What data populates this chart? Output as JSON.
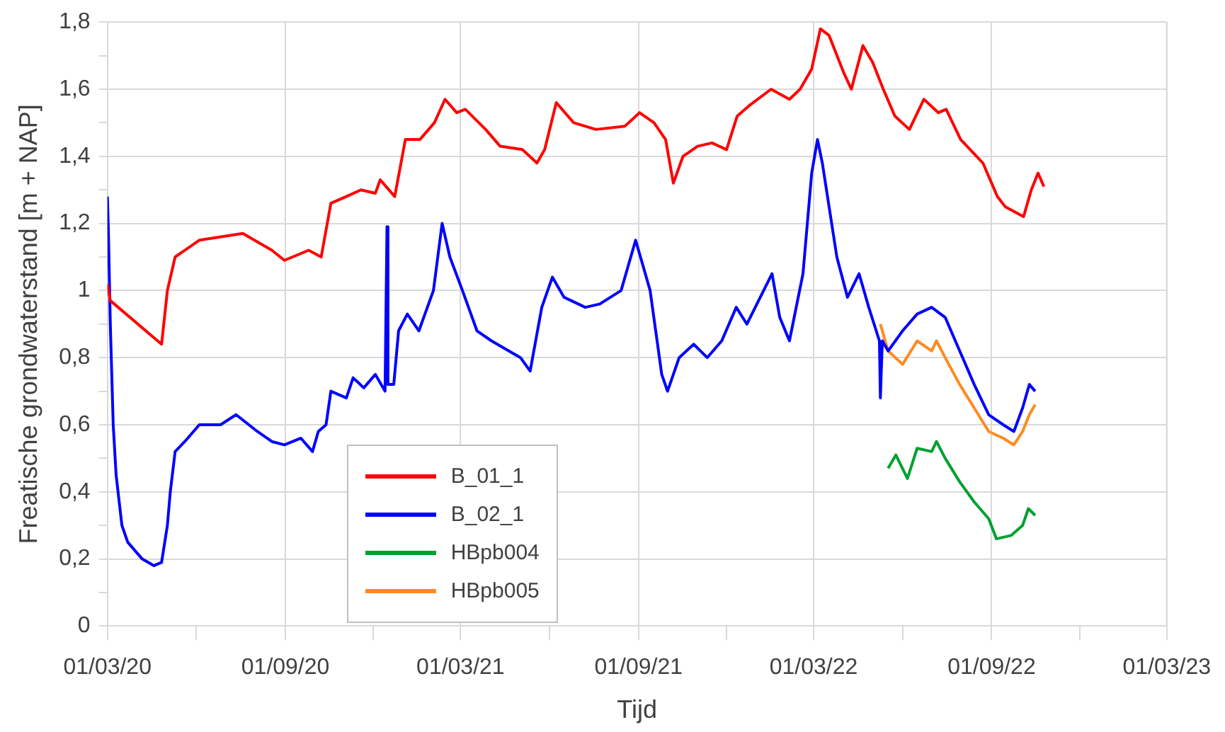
{
  "chart_data": {
    "type": "line",
    "xlabel": "Tijd",
    "ylabel": "Freatische grondwaterstand [m + NAP]",
    "xlim": [
      "2020-03-01",
      "2023-03-01"
    ],
    "xticks": [
      {
        "value": "2020-03-01",
        "label": "01/03/20"
      },
      {
        "value": "2020-06-01",
        "label": null
      },
      {
        "value": "2020-09-01",
        "label": "01/09/20"
      },
      {
        "value": "2020-12-01",
        "label": null
      },
      {
        "value": "2021-03-01",
        "label": "01/03/21"
      },
      {
        "value": "2021-06-01",
        "label": null
      },
      {
        "value": "2021-09-01",
        "label": "01/09/21"
      },
      {
        "value": "2021-12-01",
        "label": null
      },
      {
        "value": "2022-03-01",
        "label": "01/03/22"
      },
      {
        "value": "2022-06-01",
        "label": null
      },
      {
        "value": "2022-09-01",
        "label": "01/09/22"
      },
      {
        "value": "2022-12-01",
        "label": null
      },
      {
        "value": "2023-03-01",
        "label": "01/03/23"
      }
    ],
    "ylim": [
      0,
      1.8
    ],
    "yticks": [
      0,
      {
        "value": 0.1,
        "label": null
      },
      {
        "value": 0.2,
        "label": "0,2"
      },
      {
        "value": 0.3,
        "label": null
      },
      {
        "value": 0.4,
        "label": "0,4"
      },
      {
        "value": 0.5,
        "label": null
      },
      {
        "value": 0.6,
        "label": "0,6"
      },
      {
        "value": 0.7,
        "label": null
      },
      {
        "value": 0.8,
        "label": "0,8"
      },
      {
        "value": 0.9,
        "label": null
      },
      1,
      {
        "value": 1.1,
        "label": null
      },
      {
        "value": 1.2,
        "label": "1,2"
      },
      {
        "value": 1.3,
        "label": null
      },
      {
        "value": 1.4,
        "label": "1,4"
      },
      {
        "value": 1.5,
        "label": null
      },
      {
        "value": 1.6,
        "label": "1,6"
      },
      {
        "value": 1.7,
        "label": null
      },
      {
        "value": 1.8,
        "label": "1,8"
      }
    ],
    "grid": true,
    "legend": "bottom",
    "marker": "none",
    "line_style": "solid",
    "series": [
      {
        "name": "B_01_1",
        "color": "#ff0000",
        "x": [
          "2020-03-01",
          "2020-03-04",
          "2020-04-26",
          "2020-05-02",
          "2020-05-10",
          "2020-06-04",
          "2020-07-19",
          "2020-08-18",
          "2020-08-31",
          "2020-09-25",
          "2020-10-08",
          "2020-10-18",
          "2020-11-03",
          "2020-11-18",
          "2020-12-03",
          "2020-12-08",
          "2020-12-23",
          "2021-01-03",
          "2021-01-18",
          "2021-02-02",
          "2021-02-13",
          "2021-02-25",
          "2021-03-06",
          "2021-03-27",
          "2021-04-11",
          "2021-05-04",
          "2021-05-19",
          "2021-05-27",
          "2021-06-08",
          "2021-06-26",
          "2021-07-19",
          "2021-08-18",
          "2021-09-02",
          "2021-09-17",
          "2021-09-29",
          "2021-10-07",
          "2021-10-17",
          "2021-11-01",
          "2021-11-16",
          "2021-12-01",
          "2021-12-12",
          "2021-12-24",
          "2022-01-16",
          "2022-02-04",
          "2022-02-15",
          "2022-02-27",
          "2022-03-08",
          "2022-03-17",
          "2022-04-01",
          "2022-04-09",
          "2022-04-21",
          "2022-05-01",
          "2022-05-12",
          "2022-05-24",
          "2022-06-08",
          "2022-06-23",
          "2022-07-08",
          "2022-07-16",
          "2022-07-31",
          "2022-08-23",
          "2022-09-07",
          "2022-09-15",
          "2022-10-04",
          "2022-10-12",
          "2022-10-19",
          "2022-10-25"
        ],
        "values": [
          1.02,
          0.97,
          0.84,
          1.0,
          1.1,
          1.15,
          1.17,
          1.12,
          1.09,
          1.12,
          1.1,
          1.26,
          1.28,
          1.3,
          1.29,
          1.33,
          1.28,
          1.45,
          1.45,
          1.5,
          1.57,
          1.53,
          1.54,
          1.48,
          1.43,
          1.42,
          1.38,
          1.42,
          1.56,
          1.5,
          1.48,
          1.49,
          1.53,
          1.5,
          1.45,
          1.32,
          1.4,
          1.43,
          1.44,
          1.42,
          1.52,
          1.55,
          1.6,
          1.57,
          1.6,
          1.66,
          1.78,
          1.76,
          1.65,
          1.6,
          1.73,
          1.68,
          1.6,
          1.52,
          1.48,
          1.57,
          1.53,
          1.54,
          1.45,
          1.38,
          1.28,
          1.25,
          1.22,
          1.3,
          1.35,
          1.31
        ]
      },
      {
        "name": "B_02_1",
        "color": "#0000ff",
        "x": [
          "2020-03-01",
          "2020-03-02",
          "2020-03-04",
          "2020-03-07",
          "2020-03-10",
          "2020-03-16",
          "2020-03-22",
          "2020-04-06",
          "2020-04-18",
          "2020-04-26",
          "2020-05-02",
          "2020-05-05",
          "2020-05-10",
          "2020-05-20",
          "2020-06-04",
          "2020-06-26",
          "2020-07-12",
          "2020-08-03",
          "2020-08-18",
          "2020-08-31",
          "2020-09-17",
          "2020-09-29",
          "2020-10-05",
          "2020-10-13",
          "2020-10-18",
          "2020-11-03",
          "2020-11-10",
          "2020-11-21",
          "2020-12-03",
          "2020-12-13",
          "2020-12-15",
          "2020-12-16",
          "2020-12-22",
          "2020-12-27",
          "2021-01-05",
          "2021-01-17",
          "2021-02-01",
          "2021-02-10",
          "2021-02-18",
          "2021-03-03",
          "2021-03-18",
          "2021-04-02",
          "2021-05-02",
          "2021-05-12",
          "2021-05-24",
          "2021-06-04",
          "2021-06-16",
          "2021-07-08",
          "2021-07-23",
          "2021-08-14",
          "2021-08-29",
          "2021-09-13",
          "2021-09-25",
          "2021-10-01",
          "2021-10-13",
          "2021-10-28",
          "2021-11-11",
          "2021-11-26",
          "2021-12-11",
          "2021-12-22",
          "2022-01-17",
          "2022-01-25",
          "2022-02-04",
          "2022-02-18",
          "2022-02-27",
          "2022-03-05",
          "2022-03-10",
          "2022-03-25",
          "2022-04-05",
          "2022-04-17",
          "2022-04-27",
          "2022-05-08",
          "2022-05-09",
          "2022-05-11",
          "2022-05-17",
          "2022-06-01",
          "2022-06-16",
          "2022-07-01",
          "2022-07-15",
          "2022-07-30",
          "2022-08-14",
          "2022-08-29",
          "2022-09-13",
          "2022-09-24",
          "2022-10-03",
          "2022-10-10",
          "2022-10-16"
        ],
        "values": [
          1.28,
          1.18,
          0.9,
          0.6,
          0.45,
          0.3,
          0.25,
          0.2,
          0.18,
          0.19,
          0.3,
          0.4,
          0.52,
          0.55,
          0.6,
          0.6,
          0.63,
          0.58,
          0.55,
          0.54,
          0.56,
          0.52,
          0.58,
          0.6,
          0.7,
          0.68,
          0.74,
          0.71,
          0.75,
          0.7,
          1.19,
          0.72,
          0.72,
          0.88,
          0.93,
          0.88,
          1.0,
          1.2,
          1.1,
          1.0,
          0.88,
          0.85,
          0.8,
          0.76,
          0.95,
          1.04,
          0.98,
          0.95,
          0.96,
          1.0,
          1.15,
          1.0,
          0.75,
          0.7,
          0.8,
          0.84,
          0.8,
          0.85,
          0.95,
          0.9,
          1.05,
          0.92,
          0.85,
          1.05,
          1.35,
          1.45,
          1.38,
          1.1,
          0.98,
          1.05,
          0.95,
          0.85,
          0.68,
          0.85,
          0.82,
          0.88,
          0.93,
          0.95,
          0.92,
          0.82,
          0.72,
          0.63,
          0.6,
          0.58,
          0.65,
          0.72,
          0.7
        ]
      },
      {
        "name": "HBpb004",
        "color": "#00a030",
        "x": [
          "2022-05-17",
          "2022-05-25",
          "2022-06-06",
          "2022-06-16",
          "2022-07-01",
          "2022-07-06",
          "2022-07-15",
          "2022-07-30",
          "2022-08-14",
          "2022-08-29",
          "2022-09-06",
          "2022-09-21",
          "2022-10-03",
          "2022-10-09",
          "2022-10-16"
        ],
        "values": [
          0.47,
          0.51,
          0.44,
          0.53,
          0.52,
          0.55,
          0.5,
          0.43,
          0.37,
          0.32,
          0.26,
          0.27,
          0.3,
          0.35,
          0.33
        ]
      },
      {
        "name": "HBpb005",
        "color": "#ff8a20",
        "x": [
          "2022-05-09",
          "2022-05-17",
          "2022-06-01",
          "2022-06-16",
          "2022-07-01",
          "2022-07-06",
          "2022-07-15",
          "2022-07-30",
          "2022-08-14",
          "2022-08-29",
          "2022-09-13",
          "2022-09-24",
          "2022-10-03",
          "2022-10-10",
          "2022-10-16"
        ],
        "values": [
          0.9,
          0.82,
          0.78,
          0.85,
          0.82,
          0.85,
          0.8,
          0.72,
          0.65,
          0.58,
          0.56,
          0.54,
          0.58,
          0.63,
          0.66
        ]
      }
    ]
  }
}
